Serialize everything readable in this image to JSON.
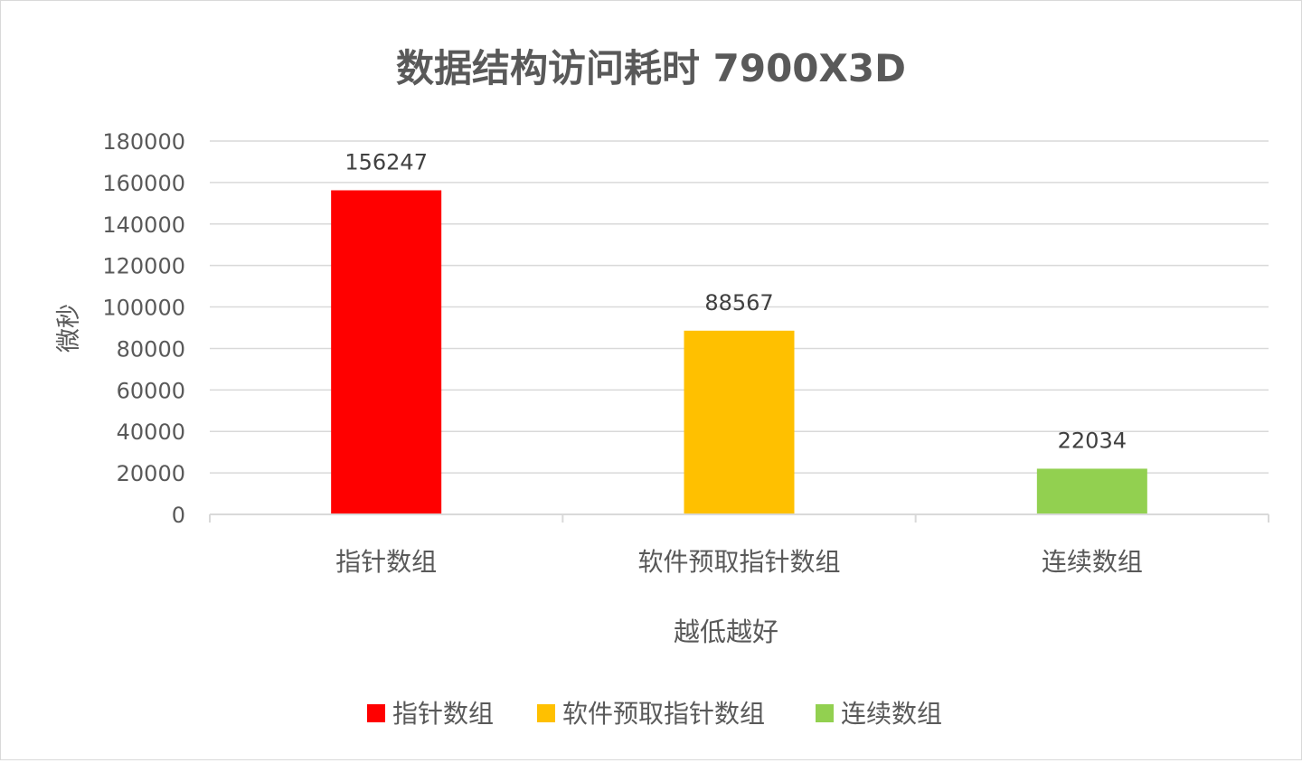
{
  "chart_data": {
    "type": "bar",
    "title": "数据结构访问耗时 7900X3D",
    "xlabel": "越低越好",
    "ylabel": "微秒",
    "categories": [
      "指针数组",
      "软件预取指针数组",
      "连续数组"
    ],
    "values": [
      156247,
      88567,
      22034
    ],
    "colors": [
      "#ff0000",
      "#ffc000",
      "#92d050"
    ],
    "ylim": [
      0,
      180000
    ],
    "yticks": [
      "0",
      "20000",
      "40000",
      "60000",
      "80000",
      "100000",
      "120000",
      "140000",
      "160000",
      "180000"
    ],
    "data_labels": [
      "156247",
      "88567",
      "22034"
    ],
    "grid": true,
    "legend": {
      "position": "bottom",
      "entries": [
        "指针数组",
        "软件预取指针数组",
        "连续数组"
      ]
    }
  },
  "colors": {
    "title": "#595959",
    "axis_text": "#595959",
    "data_label": "#404040",
    "gridline": "#d9d9d9",
    "axis_line": "#d9d9d9"
  }
}
